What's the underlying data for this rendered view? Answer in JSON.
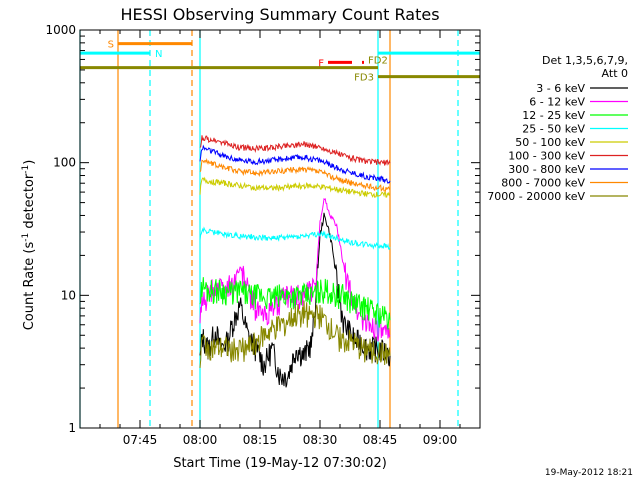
{
  "chart_data": {
    "type": "line",
    "title": "HESSI Observing Summary Count Rates",
    "xlabel": "Start Time (19-May-12 07:30:02)",
    "ylabel_main": "Count Rate (s",
    "ylabel_sup1": "-1",
    "ylabel_mid": " detector",
    "ylabel_sup2": "-1",
    "ylabel_end": ")",
    "x_range_min": [
      0,
      100
    ],
    "y_range": [
      1,
      1000
    ],
    "y_scale": "log",
    "x_ticks": [
      {
        "label": "07:45",
        "min": 15
      },
      {
        "label": "08:00",
        "min": 30
      },
      {
        "label": "08:15",
        "min": 45
      },
      {
        "label": "08:30",
        "min": 60
      },
      {
        "label": "08:45",
        "min": 75
      },
      {
        "label": "09:00",
        "min": 90
      }
    ],
    "y_ticks": [
      {
        "label": "1",
        "v": 1
      },
      {
        "label": "10",
        "v": 10
      },
      {
        "label": "100",
        "v": 100
      },
      {
        "label": "1000",
        "v": 1000
      }
    ],
    "legend_header": [
      "Det 1,3,5,6,7,9,",
      "Att 0"
    ],
    "series": [
      {
        "name": "3 - 6 keV",
        "color": "#000000",
        "x": [
          30,
          30.5,
          32,
          34,
          35,
          37,
          38,
          40,
          42,
          44,
          46,
          48,
          50,
          52,
          54,
          56,
          58,
          59,
          60,
          61,
          62,
          63,
          64,
          65,
          66,
          67,
          68,
          69,
          70,
          72,
          74,
          76,
          77.5
        ],
        "y": [
          3.2,
          5,
          4,
          5.5,
          4,
          4.5,
          6,
          8.5,
          5,
          4,
          3,
          4,
          2.5,
          2.5,
          4,
          3.5,
          4.5,
          10,
          28,
          40,
          33,
          24,
          14,
          9,
          6,
          5.5,
          5,
          4.5,
          4.5,
          4,
          4,
          3.8,
          3.5
        ]
      },
      {
        "name": "6 - 12 keV",
        "color": "#ff00ff",
        "x": [
          30,
          30.5,
          32,
          34,
          36,
          38,
          40,
          41,
          42,
          44,
          46,
          48,
          50,
          52,
          54,
          56,
          58,
          59,
          60,
          61,
          62,
          63,
          64,
          65,
          66,
          67,
          68,
          69,
          70,
          72,
          74,
          76,
          77.5
        ],
        "y": [
          6,
          9,
          10,
          12,
          11,
          12,
          16,
          14,
          11,
          8,
          7,
          8,
          9,
          10,
          10,
          10,
          11,
          13,
          35,
          55,
          45,
          38,
          35,
          24,
          16,
          12,
          10,
          8,
          7,
          6,
          6,
          5,
          5
        ]
      },
      {
        "name": "12 - 25 keV",
        "color": "#00ff00",
        "x": [
          30,
          30.5,
          32,
          35,
          38,
          40,
          42,
          45,
          48,
          50,
          52,
          55,
          58,
          60,
          62,
          64,
          66,
          68,
          70,
          72,
          74,
          76,
          77.5
        ],
        "y": [
          9,
          12,
          11,
          11,
          10.5,
          11,
          10,
          10,
          9.5,
          10,
          10,
          10,
          10,
          11,
          11,
          10,
          10,
          9,
          8.5,
          8,
          7.5,
          7,
          6.5
        ]
      },
      {
        "name": "25 - 50 keV",
        "color": "#00ffff",
        "x": [
          30,
          30.5,
          33,
          36,
          40,
          44,
          48,
          52,
          56,
          60,
          64,
          68,
          72,
          76,
          77.5
        ],
        "y": [
          27,
          31,
          30,
          29,
          28,
          27.5,
          27,
          27.5,
          28,
          29,
          27,
          25,
          24,
          23.5,
          23
        ]
      },
      {
        "name": "50 - 100 keV",
        "color": "#cccc00",
        "x": [
          30,
          30.5,
          33,
          36,
          40,
          44,
          48,
          52,
          56,
          60,
          64,
          68,
          72,
          76,
          77.5
        ],
        "y": [
          60,
          74,
          72,
          70,
          67,
          65,
          64,
          66,
          67,
          66,
          63,
          60,
          58,
          57,
          57
        ]
      },
      {
        "name": "100 - 300 keV",
        "color": "#dd2222",
        "x": [
          30,
          30.5,
          33,
          36,
          40,
          44,
          48,
          52,
          56,
          60,
          64,
          68,
          72,
          76,
          77.5
        ],
        "y": [
          125,
          155,
          148,
          140,
          130,
          128,
          130,
          135,
          138,
          130,
          118,
          108,
          102,
          100,
          99
        ]
      },
      {
        "name": "300 - 800 keV",
        "color": "#0000ff",
        "x": [
          30,
          30.5,
          33,
          36,
          40,
          44,
          48,
          52,
          56,
          60,
          64,
          68,
          72,
          76,
          77.5
        ],
        "y": [
          100,
          130,
          122,
          112,
          104,
          102,
          104,
          108,
          110,
          104,
          92,
          84,
          78,
          75,
          73
        ]
      },
      {
        "name": "800 - 7000 keV",
        "color": "#ff8800",
        "x": [
          30,
          30.5,
          33,
          36,
          40,
          44,
          48,
          52,
          56,
          60,
          64,
          68,
          72,
          76,
          77.5
        ],
        "y": [
          85,
          105,
          98,
          92,
          86,
          84,
          85,
          88,
          89,
          85,
          76,
          70,
          66,
          64,
          63
        ]
      },
      {
        "name": "7000 - 20000 keV",
        "color": "#888800",
        "x": [
          30,
          30.5,
          33,
          36,
          39,
          42,
          44,
          46,
          48,
          50,
          52,
          54,
          56,
          58,
          60,
          62,
          64,
          66,
          68,
          70,
          72,
          74,
          76,
          77.5
        ],
        "y": [
          3,
          4.5,
          4,
          4,
          4,
          4,
          4.5,
          5,
          5.5,
          6,
          6.5,
          7,
          7.5,
          7,
          7,
          6,
          5,
          4.5,
          4.5,
          4,
          4,
          3.8,
          3.6,
          3.5
        ]
      }
    ],
    "vertical_lines": [
      {
        "min": 0,
        "color": "#00ffff",
        "dash": false
      },
      {
        "min": 9.5,
        "color": "#ff8800",
        "dash": false
      },
      {
        "min": 17.5,
        "color": "#00ffff",
        "dash": true
      },
      {
        "min": 28,
        "color": "#ff8800",
        "dash": true
      },
      {
        "min": 30,
        "color": "#00ffff",
        "dash": false
      },
      {
        "min": 74.5,
        "color": "#00ffff",
        "dash": false
      },
      {
        "min": 77.5,
        "color": "#ff8800",
        "dash": false
      },
      {
        "min": 94.5,
        "color": "#00ffff",
        "dash": true
      }
    ],
    "flag_bars": [
      {
        "label": "S",
        "color": "#ff8800",
        "x0": 9.5,
        "x1": 28,
        "y": 790,
        "dashed": false,
        "label_side": "left"
      },
      {
        "label": "N",
        "color": "#00ffff",
        "x0": 0,
        "x1": 17.5,
        "y": 670,
        "dashed": false,
        "label_side": "right"
      },
      {
        "label": "N",
        "color": "#00ffff",
        "x0": 74.5,
        "x1": 100,
        "y": 670,
        "dashed": false,
        "label_side": "none"
      },
      {
        "label": "F",
        "color": "#ff0000",
        "x0": 62,
        "x1": 71,
        "y": 570,
        "dashed": true,
        "label_side": "left"
      },
      {
        "label": "FD2",
        "color": "#888800",
        "x0": 0,
        "x1": 74.5,
        "y": 520,
        "dashed": false,
        "label_side": "end"
      },
      {
        "label": "FD3",
        "color": "#888800",
        "x0": 74.5,
        "x1": 100,
        "y": 445,
        "dashed": false,
        "label_side": "left"
      }
    ],
    "footer_date": "19-May-2012 18:21"
  }
}
